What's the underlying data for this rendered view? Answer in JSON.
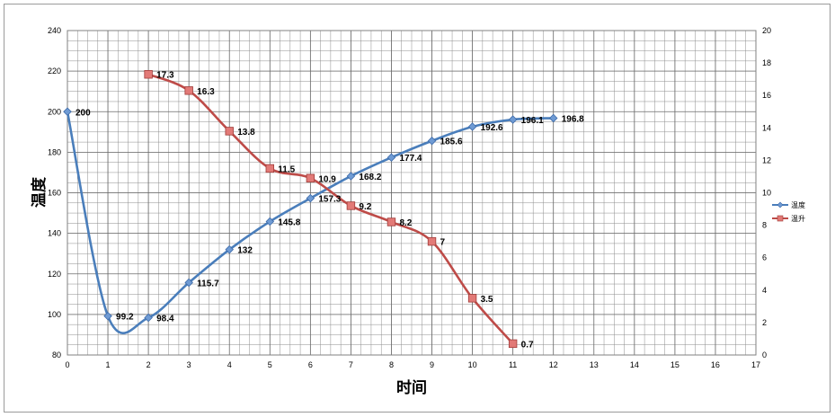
{
  "chart_data": {
    "type": "line",
    "xlabel": "时间",
    "ylabel": "温度",
    "xlim": [
      0,
      17
    ],
    "x_ticks": [
      0,
      1,
      2,
      3,
      4,
      5,
      6,
      7,
      8,
      9,
      10,
      11,
      12,
      13,
      14,
      15,
      16,
      17
    ],
    "ylim": [
      80,
      240
    ],
    "y_ticks": [
      80,
      100,
      120,
      140,
      160,
      180,
      200,
      220,
      240
    ],
    "y2lim": [
      0,
      20
    ],
    "y2_ticks": [
      0,
      2,
      4,
      6,
      8,
      10,
      12,
      14,
      16,
      18,
      20
    ],
    "grid": true,
    "legend_position": "right",
    "series": [
      {
        "name": "温度",
        "axis": "left",
        "color": "#4a7ebb",
        "marker": "diamond",
        "x": [
          0,
          1,
          2,
          3,
          4,
          5,
          6,
          7,
          8,
          9,
          10,
          11,
          12
        ],
        "values": [
          200,
          99.2,
          98.4,
          115.7,
          132,
          145.8,
          157.3,
          168.2,
          177.4,
          185.6,
          192.6,
          196.1,
          196.8
        ],
        "labels": [
          "200",
          "99.2",
          "98.4",
          "115.7",
          "132",
          "145.8",
          "157.3",
          "168.2",
          "177.4",
          "185.6",
          "192.6",
          "196.1",
          "196.8"
        ]
      },
      {
        "name": "温升",
        "axis": "right",
        "color": "#be4b48",
        "marker": "square",
        "x": [
          2,
          3,
          4,
          5,
          6,
          7,
          8,
          9,
          10,
          11
        ],
        "values": [
          17.3,
          16.3,
          13.8,
          11.5,
          10.9,
          9.2,
          8.2,
          7,
          3.5,
          0.7
        ],
        "labels": [
          "17.3",
          "16.3",
          "13.8",
          "11.5",
          "10.9",
          "9.2",
          "8.2",
          "7",
          "3.5",
          "0.7"
        ]
      }
    ]
  }
}
